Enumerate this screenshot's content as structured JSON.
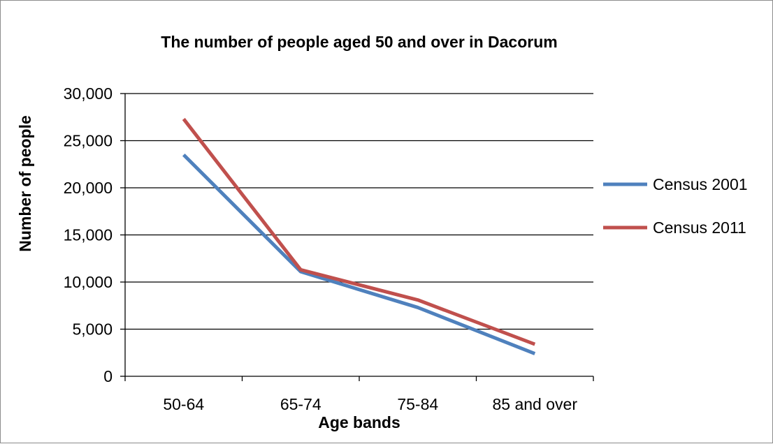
{
  "chart_data": {
    "type": "line",
    "title": "The number of people aged 50 and over in Dacorum",
    "xlabel": "Age bands",
    "ylabel": "Number of people",
    "categories": [
      "50-64",
      "65-74",
      "75-84",
      "85 and over"
    ],
    "ylim": [
      0,
      30000
    ],
    "yticks": [
      0,
      5000,
      10000,
      15000,
      20000,
      25000,
      30000
    ],
    "ytick_labels": [
      "0",
      "5,000",
      "10,000",
      "15,000",
      "20,000",
      "25,000",
      "30,000"
    ],
    "grid": "horizontal",
    "legend_position": "right",
    "series": [
      {
        "name": "Census 2001",
        "color": "#4f81bd",
        "values": [
          23500,
          11100,
          7300,
          2400
        ]
      },
      {
        "name": "Census 2011",
        "color": "#c0504d",
        "values": [
          27300,
          11300,
          8100,
          3400
        ]
      }
    ]
  }
}
